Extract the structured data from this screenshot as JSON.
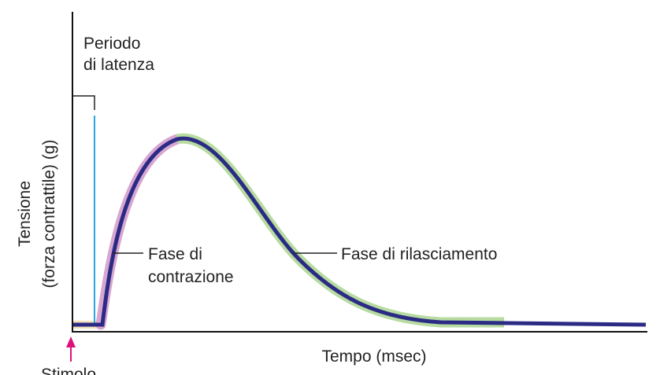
{
  "latency_label": [
    "Periodo",
    "di latenza"
  ],
  "y_axis_label": [
    "Tensione",
    "(forza contrattile) (g)"
  ],
  "contraction_label": [
    "Fase di",
    "contrazione"
  ],
  "relaxation_label": "Fase di rilasciamento",
  "x_axis_label": "Tempo (msec)",
  "stimulus_label": "Stimolo"
}
